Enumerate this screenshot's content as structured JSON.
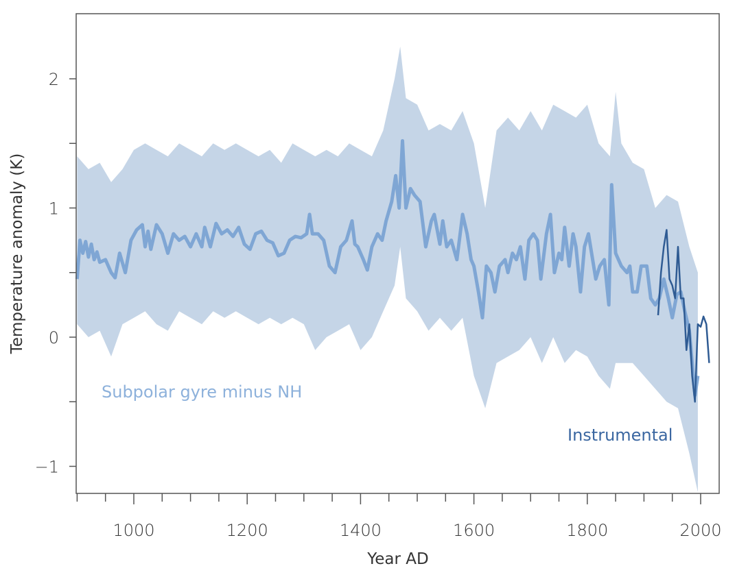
{
  "chart_data": {
    "type": "line",
    "title": "",
    "xlabel": "Year AD",
    "ylabel": "Temperature anomaly (K)",
    "xlim": [
      900,
      2033
    ],
    "ylim": [
      -1.2,
      2.5
    ],
    "grid": false,
    "x_ticks": [
      1000,
      1200,
      1400,
      1600,
      1800,
      2000
    ],
    "x_minor_step": 50,
    "y_ticks": [
      -1,
      0,
      1,
      2
    ],
    "y_minor_step": 0.5,
    "colors": {
      "band": "#c5d5e7",
      "reconstruction": "#7fa6d4",
      "instrumental": "#2f5b93",
      "label_reconstruction": "#8db1db",
      "label_instrumental": "#3b67a1",
      "axis": "#555555"
    },
    "annotations": [
      {
        "text": "Subpolar gyre minus NH",
        "series": "reconstruction"
      },
      {
        "text": "Instrumental",
        "series": "instrumental"
      }
    ],
    "series": [
      {
        "name": "Subpolar gyre minus NH",
        "kind": "mean",
        "x": [
          900,
          905,
          910,
          915,
          920,
          925,
          930,
          935,
          940,
          950,
          960,
          967,
          975,
          985,
          995,
          1005,
          1015,
          1020,
          1025,
          1030,
          1040,
          1050,
          1060,
          1070,
          1080,
          1090,
          1100,
          1110,
          1120,
          1125,
          1135,
          1145,
          1155,
          1165,
          1175,
          1185,
          1195,
          1205,
          1215,
          1225,
          1235,
          1245,
          1255,
          1265,
          1275,
          1285,
          1295,
          1305,
          1310,
          1315,
          1325,
          1335,
          1345,
          1355,
          1365,
          1375,
          1385,
          1390,
          1395,
          1405,
          1412,
          1420,
          1430,
          1438,
          1445,
          1455,
          1462,
          1468,
          1474,
          1480,
          1488,
          1495,
          1505,
          1515,
          1525,
          1530,
          1540,
          1545,
          1552,
          1560,
          1570,
          1580,
          1588,
          1595,
          1600,
          1608,
          1615,
          1622,
          1630,
          1637,
          1645,
          1655,
          1660,
          1668,
          1675,
          1682,
          1690,
          1697,
          1705,
          1712,
          1718,
          1728,
          1735,
          1742,
          1750,
          1755,
          1760,
          1768,
          1775,
          1780,
          1788,
          1795,
          1802,
          1815,
          1822,
          1830,
          1838,
          1843,
          1850,
          1860,
          1870,
          1875,
          1880,
          1888,
          1895,
          1905,
          1912,
          1920,
          1927,
          1935,
          1943,
          1950,
          1958,
          1965,
          1972,
          1980,
          1985,
          1990,
          1995
        ],
        "y": [
          0.45,
          0.75,
          0.65,
          0.74,
          0.62,
          0.72,
          0.6,
          0.66,
          0.58,
          0.6,
          0.5,
          0.46,
          0.65,
          0.5,
          0.75,
          0.83,
          0.87,
          0.7,
          0.82,
          0.68,
          0.87,
          0.8,
          0.65,
          0.8,
          0.75,
          0.78,
          0.7,
          0.8,
          0.7,
          0.85,
          0.7,
          0.88,
          0.8,
          0.83,
          0.78,
          0.85,
          0.72,
          0.68,
          0.8,
          0.82,
          0.75,
          0.73,
          0.63,
          0.65,
          0.75,
          0.78,
          0.77,
          0.8,
          0.95,
          0.8,
          0.8,
          0.75,
          0.55,
          0.5,
          0.7,
          0.75,
          0.9,
          0.72,
          0.7,
          0.6,
          0.52,
          0.7,
          0.8,
          0.75,
          0.9,
          1.05,
          1.25,
          1.0,
          1.52,
          1.0,
          1.15,
          1.1,
          1.05,
          0.7,
          0.9,
          0.95,
          0.72,
          0.9,
          0.7,
          0.75,
          0.6,
          0.95,
          0.8,
          0.6,
          0.55,
          0.35,
          0.15,
          0.55,
          0.5,
          0.35,
          0.55,
          0.6,
          0.5,
          0.65,
          0.6,
          0.7,
          0.45,
          0.75,
          0.8,
          0.75,
          0.45,
          0.8,
          0.95,
          0.5,
          0.65,
          0.6,
          0.85,
          0.55,
          0.8,
          0.7,
          0.35,
          0.7,
          0.8,
          0.45,
          0.55,
          0.6,
          0.25,
          1.18,
          0.65,
          0.55,
          0.5,
          0.55,
          0.35,
          0.35,
          0.55,
          0.55,
          0.3,
          0.25,
          0.3,
          0.45,
          0.3,
          0.15,
          0.33,
          0.35,
          0.2,
          0.05,
          -0.2,
          -0.45,
          -0.3
        ]
      },
      {
        "name": "Subpolar gyre minus NH",
        "kind": "uncertainty-band",
        "x": [
          900,
          920,
          940,
          960,
          980,
          1000,
          1020,
          1040,
          1060,
          1080,
          1100,
          1120,
          1140,
          1160,
          1180,
          1200,
          1220,
          1240,
          1260,
          1280,
          1300,
          1320,
          1340,
          1360,
          1380,
          1400,
          1420,
          1440,
          1460,
          1470,
          1480,
          1500,
          1520,
          1540,
          1560,
          1580,
          1600,
          1620,
          1640,
          1660,
          1680,
          1700,
          1720,
          1740,
          1760,
          1780,
          1800,
          1820,
          1840,
          1850,
          1860,
          1880,
          1900,
          1920,
          1940,
          1960,
          1980,
          1995
        ],
        "upper": [
          1.4,
          1.3,
          1.35,
          1.2,
          1.3,
          1.45,
          1.5,
          1.45,
          1.4,
          1.5,
          1.45,
          1.4,
          1.5,
          1.45,
          1.5,
          1.45,
          1.4,
          1.45,
          1.35,
          1.5,
          1.45,
          1.4,
          1.45,
          1.4,
          1.5,
          1.45,
          1.4,
          1.6,
          2.0,
          2.25,
          1.85,
          1.8,
          1.6,
          1.65,
          1.6,
          1.75,
          1.5,
          1.0,
          1.6,
          1.7,
          1.6,
          1.75,
          1.6,
          1.8,
          1.75,
          1.7,
          1.8,
          1.5,
          1.4,
          1.9,
          1.5,
          1.35,
          1.3,
          1.0,
          1.1,
          1.05,
          0.7,
          0.5
        ],
        "lower": [
          0.1,
          0.0,
          0.05,
          -0.15,
          0.1,
          0.15,
          0.2,
          0.1,
          0.05,
          0.2,
          0.15,
          0.1,
          0.2,
          0.15,
          0.2,
          0.15,
          0.1,
          0.15,
          0.1,
          0.15,
          0.1,
          -0.1,
          0.0,
          0.05,
          0.1,
          -0.1,
          0.0,
          0.2,
          0.4,
          0.7,
          0.3,
          0.2,
          0.05,
          0.15,
          0.05,
          0.15,
          -0.3,
          -0.55,
          -0.2,
          -0.15,
          -0.1,
          0.0,
          -0.2,
          0.0,
          -0.2,
          -0.1,
          -0.15,
          -0.3,
          -0.4,
          -0.2,
          -0.2,
          -0.2,
          -0.3,
          -0.4,
          -0.5,
          -0.55,
          -0.9,
          -1.2
        ]
      },
      {
        "name": "Instrumental",
        "kind": "instrumental",
        "x": [
          1925,
          1930,
          1935,
          1940,
          1945,
          1950,
          1955,
          1960,
          1965,
          1970,
          1975,
          1980,
          1985,
          1990,
          1995,
          2000,
          2005,
          2010,
          2015
        ],
        "y": [
          0.17,
          0.5,
          0.7,
          0.83,
          0.45,
          0.4,
          0.3,
          0.7,
          0.3,
          0.3,
          -0.1,
          0.1,
          -0.3,
          -0.5,
          0.1,
          0.08,
          0.16,
          0.1,
          -0.2
        ]
      }
    ]
  }
}
